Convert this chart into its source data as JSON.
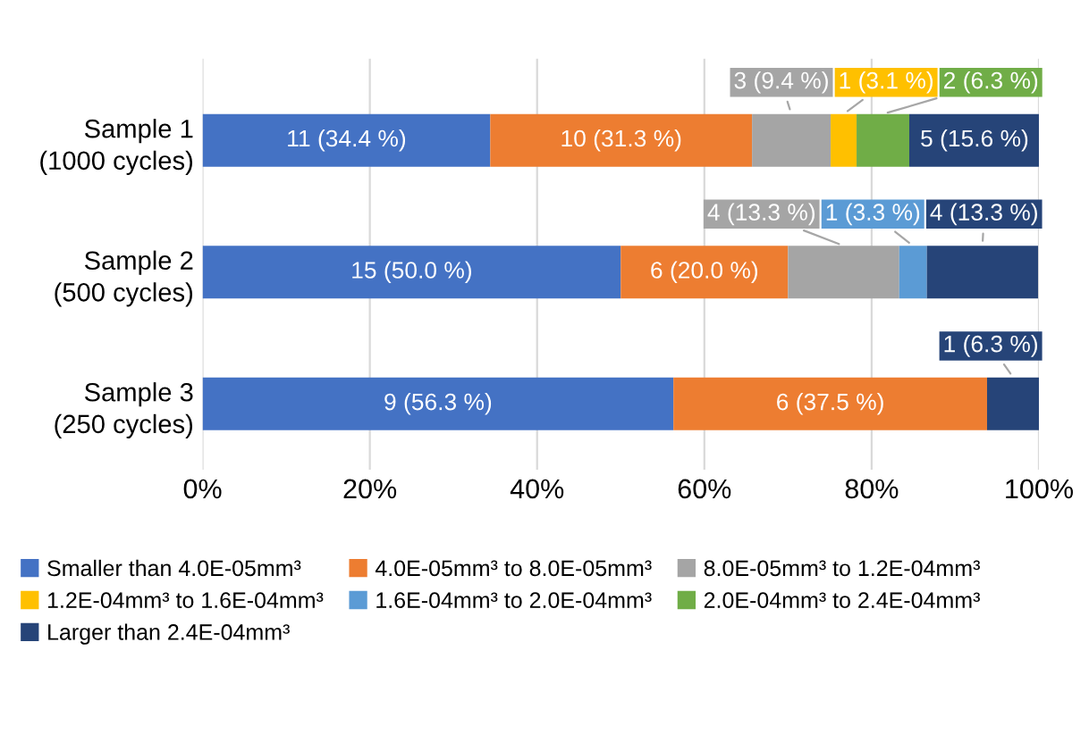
{
  "chart_data": {
    "type": "bar",
    "orientation": "horizontal",
    "stacked": true,
    "categories": [
      "Sample 1\n(1000 cycles)",
      "Sample 2\n(500 cycles)",
      "Sample 3\n(250 cycles)"
    ],
    "series": [
      {
        "name": "Smaller than 4.0E-05mm³",
        "color": "#4472c4",
        "values": [
          34.4,
          50.0,
          56.3
        ],
        "value_labels": [
          "11 (34.4 %)",
          "15 (50.0 %)",
          "9 (56.3 %)"
        ]
      },
      {
        "name": "4.0E-05mm³ to 8.0E-05mm³",
        "color": "#ed7d31",
        "values": [
          31.3,
          20.0,
          37.5
        ],
        "value_labels": [
          "10 (31.3 %)",
          "6 (20.0 %)",
          "6 (37.5 %)"
        ]
      },
      {
        "name": "8.0E-05mm³ to 1.2E-04mm³",
        "color": "#a5a5a5",
        "values": [
          9.4,
          13.3,
          null
        ],
        "value_labels": [
          "3 (9.4 %)",
          "4 (13.3 %)",
          null
        ]
      },
      {
        "name": "1.2E-04mm³ to 1.6E-04mm³",
        "color": "#ffc000",
        "values": [
          3.1,
          null,
          null
        ],
        "value_labels": [
          "1 (3.1 %)",
          null,
          null
        ]
      },
      {
        "name": "1.6E-04mm³ to 2.0E-04mm³",
        "color": "#5b9bd5",
        "values": [
          null,
          3.3,
          null
        ],
        "value_labels": [
          null,
          "1 (3.3 %)",
          null
        ]
      },
      {
        "name": "2.0E-04mm³ to 2.4E-04mm³",
        "color": "#70ad47",
        "values": [
          6.3,
          null,
          null
        ],
        "value_labels": [
          "2 (6.3 %)",
          null,
          null
        ]
      },
      {
        "name": "Larger than 2.4E-04mm³",
        "color": "#264478",
        "values": [
          15.6,
          13.3,
          6.3
        ],
        "value_labels": [
          "5 (15.6 %)",
          "4 (13.3 %)",
          "1 (6.3 %)"
        ]
      }
    ],
    "xlim": [
      0,
      100
    ],
    "xticks": [
      {
        "value": 0,
        "label": "0%"
      },
      {
        "value": 20,
        "label": "20%"
      },
      {
        "value": 40,
        "label": "40%"
      },
      {
        "value": 60,
        "label": "60%"
      },
      {
        "value": 80,
        "label": "80%"
      },
      {
        "value": 100,
        "label": "100%"
      }
    ],
    "grid": "x",
    "legend": "bottom"
  }
}
